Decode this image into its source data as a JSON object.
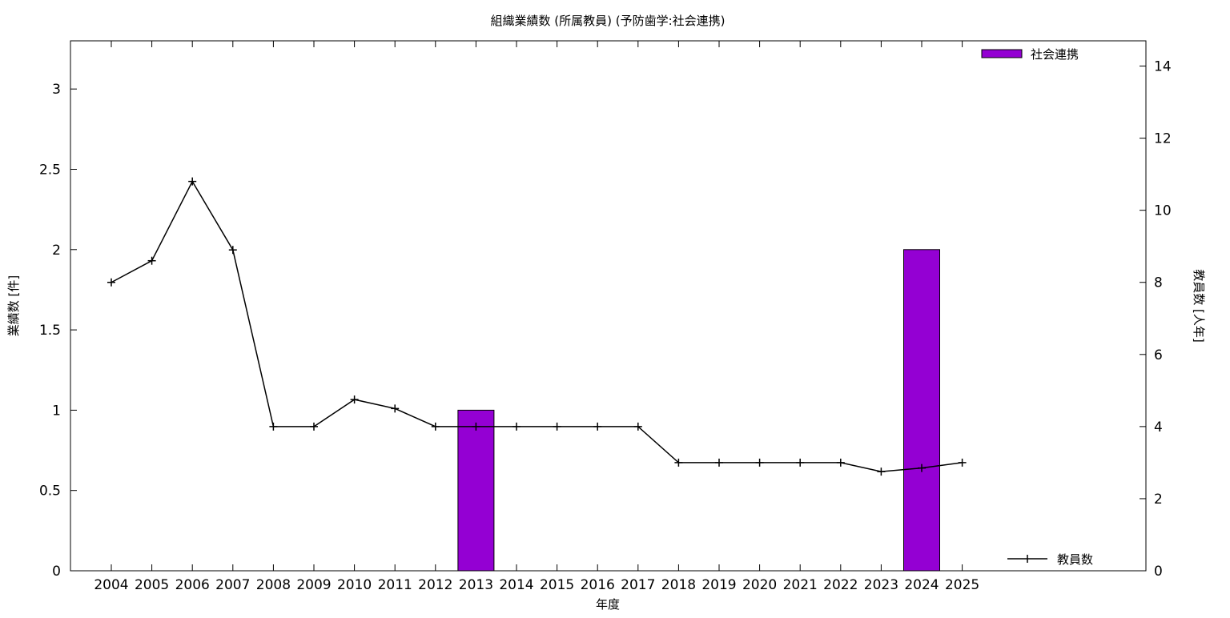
{
  "chart_data": {
    "type": "bar",
    "title": "組織業績数 (所属教員) (予防歯学:社会連携)",
    "xlabel": "年度",
    "ylabel_left": "業績数 [件]",
    "ylabel_right": "教員数 [人年]",
    "categories": [
      "2004",
      "2005",
      "2006",
      "2007",
      "2008",
      "2009",
      "2010",
      "2011",
      "2012",
      "2013",
      "2014",
      "2015",
      "2016",
      "2017",
      "2018",
      "2019",
      "2020",
      "2021",
      "2022",
      "2023",
      "2024",
      "2025"
    ],
    "y_left_lim": [
      0,
      3.3
    ],
    "y_left_ticks": [
      "0",
      "0.5",
      "1",
      "1.5",
      "2",
      "2.5",
      "3"
    ],
    "y_right_lim": [
      0,
      14.7
    ],
    "y_right_ticks": [
      "0",
      "2",
      "4",
      "6",
      "8",
      "10",
      "12",
      "14"
    ],
    "grid": false,
    "series": [
      {
        "name": "社会連携",
        "kind": "bar",
        "axis": "left",
        "color": "#9400d3",
        "values": [
          0,
          0,
          0,
          0,
          0,
          0,
          0,
          0,
          0,
          1,
          0,
          0,
          0,
          0,
          0,
          0,
          0,
          0,
          0,
          0,
          2,
          0
        ]
      },
      {
        "name": "教員数",
        "kind": "line",
        "axis": "right",
        "color": "#000000",
        "values": [
          8,
          8.6,
          10.8,
          8.9,
          4,
          4,
          4.75,
          4.5,
          4,
          4,
          4,
          4,
          4,
          4,
          3,
          3,
          3,
          3,
          3,
          2.75,
          2.85,
          3
        ]
      }
    ],
    "legend": {
      "bars_position": "top-right",
      "line_position": "bottom-right"
    }
  }
}
